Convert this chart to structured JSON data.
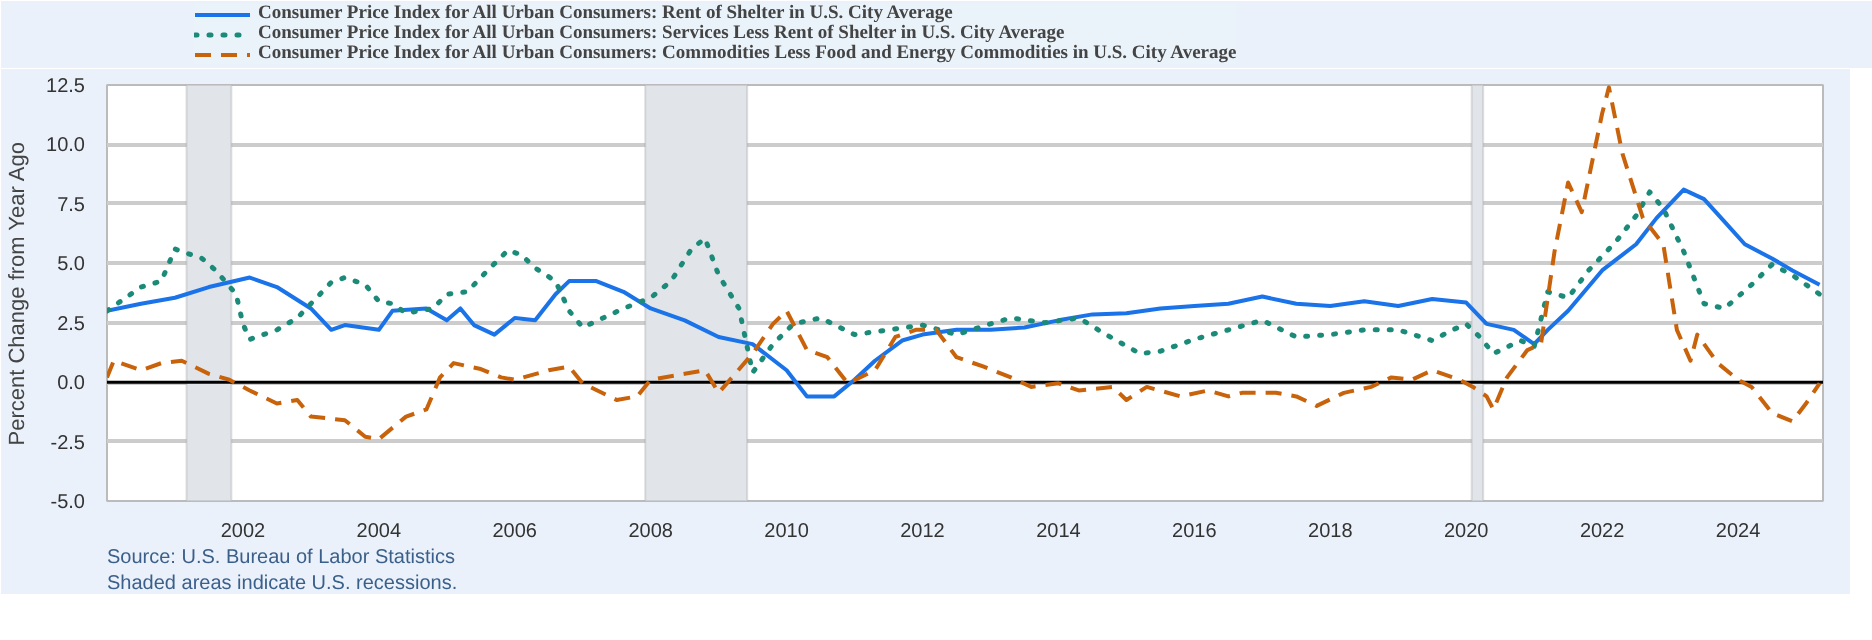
{
  "chart_data": {
    "type": "line",
    "ylabel": "Percent Change from Year Ago",
    "xlim": [
      2000.0,
      2025.25
    ],
    "xticks": [
      2002,
      2004,
      2006,
      2008,
      2010,
      2012,
      2014,
      2016,
      2018,
      2020,
      2022,
      2024
    ],
    "ylim": [
      -5,
      12.5
    ],
    "yticks": [
      {
        "value": -5,
        "label": "-5.0"
      },
      {
        "value": -2.5,
        "label": "-2.5"
      },
      {
        "value": 0,
        "label": "0.0"
      },
      {
        "value": 2.5,
        "label": "2.5"
      },
      {
        "value": 5,
        "label": "5.0"
      },
      {
        "value": 7.5,
        "label": "7.5"
      },
      {
        "value": 10,
        "label": "10.0"
      },
      {
        "value": 12.5,
        "label": "12.5"
      }
    ],
    "grid": "y",
    "legend": "top",
    "series": [
      {
        "name": "Consumer Price Index for All Urban Consumers: Rent of Shelter in U.S. City Average",
        "color": "#1a73e8",
        "line_style": "solid",
        "x": [
          2000.0,
          2000.5,
          2001.0,
          2001.5,
          2002.1,
          2002.5,
          2003.0,
          2003.3,
          2003.5,
          2004.0,
          2004.2,
          2004.7,
          2005.0,
          2005.2,
          2005.4,
          2005.7,
          2006.0,
          2006.3,
          2006.6,
          2006.8,
          2007.2,
          2007.6,
          2008.0,
          2008.5,
          2009.0,
          2009.5,
          2010.0,
          2010.3,
          2010.7,
          2011.0,
          2011.3,
          2011.7,
          2012.0,
          2012.5,
          2013.0,
          2013.5,
          2014.0,
          2014.5,
          2015.0,
          2015.5,
          2016.0,
          2016.5,
          2017.0,
          2017.5,
          2018.0,
          2018.5,
          2019.0,
          2019.5,
          2020.0,
          2020.3,
          2020.7,
          2021.0,
          2021.2,
          2021.5,
          2022.0,
          2022.5,
          2022.8,
          2023.2,
          2023.5,
          2023.8,
          2024.1,
          2024.5,
          2024.8,
          2025.2
        ],
        "values": [
          3.0,
          3.3,
          3.55,
          4.0,
          4.4,
          4.0,
          3.1,
          2.2,
          2.4,
          2.2,
          3.0,
          3.1,
          2.6,
          3.1,
          2.4,
          2.0,
          2.7,
          2.6,
          3.7,
          4.25,
          4.25,
          3.8,
          3.1,
          2.6,
          1.9,
          1.6,
          0.5,
          -0.6,
          -0.6,
          0.1,
          0.9,
          1.75,
          2.0,
          2.2,
          2.2,
          2.3,
          2.6,
          2.85,
          2.9,
          3.1,
          3.2,
          3.3,
          3.6,
          3.3,
          3.2,
          3.4,
          3.2,
          3.5,
          3.35,
          2.45,
          2.2,
          1.6,
          2.2,
          3.0,
          4.7,
          5.8,
          6.9,
          8.1,
          7.7,
          6.75,
          5.8,
          5.2,
          4.7,
          4.1
        ]
      },
      {
        "name": "Consumer Price Index for All Urban Consumers: Services Less Rent of Shelter in U.S. City Average",
        "color": "#1b8a78",
        "line_style": "dotted",
        "x": [
          2000.0,
          2000.5,
          2000.8,
          2001.0,
          2001.4,
          2001.6,
          2001.9,
          2002.0,
          2002.1,
          2002.5,
          2002.8,
          2003.0,
          2003.3,
          2003.5,
          2003.8,
          2004.0,
          2004.2,
          2004.4,
          2004.8,
          2005.0,
          2005.3,
          2005.6,
          2005.9,
          2006.1,
          2006.3,
          2006.6,
          2006.8,
          2007.0,
          2007.3,
          2007.6,
          2008.0,
          2008.3,
          2008.6,
          2008.8,
          2009.0,
          2009.3,
          2009.5,
          2009.8,
          2010.1,
          2010.5,
          2011.0,
          2011.5,
          2012.0,
          2012.5,
          2013.0,
          2013.3,
          2013.8,
          2014.3,
          2014.7,
          2015.2,
          2015.5,
          2016.0,
          2016.5,
          2017.0,
          2017.5,
          2018.0,
          2018.5,
          2019.0,
          2019.5,
          2019.8,
          2020.0,
          2020.2,
          2020.4,
          2020.8,
          2021.0,
          2021.2,
          2021.5,
          2021.8,
          2022.2,
          2022.5,
          2022.7,
          2022.9,
          2023.2,
          2023.5,
          2023.8,
          2024.2,
          2024.5,
          2024.8,
          2025.2
        ],
        "values": [
          3.0,
          4.0,
          4.25,
          5.6,
          5.2,
          4.7,
          3.7,
          2.45,
          1.8,
          2.2,
          2.7,
          3.3,
          4.2,
          4.4,
          4.1,
          3.4,
          3.3,
          2.9,
          3.1,
          3.7,
          3.8,
          4.7,
          5.55,
          5.35,
          4.8,
          4.25,
          3.0,
          2.3,
          2.7,
          3.1,
          3.55,
          4.25,
          5.6,
          6.05,
          4.5,
          3.1,
          0.4,
          1.6,
          2.45,
          2.7,
          2.0,
          2.2,
          2.4,
          2.0,
          2.45,
          2.7,
          2.5,
          2.7,
          2.0,
          1.2,
          1.3,
          1.8,
          2.2,
          2.6,
          1.9,
          2.0,
          2.2,
          2.2,
          1.75,
          2.2,
          2.45,
          1.9,
          1.2,
          1.75,
          1.5,
          3.8,
          3.55,
          4.7,
          5.9,
          7.0,
          8.0,
          7.3,
          5.5,
          3.3,
          3.1,
          4.1,
          4.95,
          4.5,
          3.7
        ]
      },
      {
        "name": "Consumer Price Index for All Urban Consumers: Commodities Less Food and Energy Commodities in U.S. City Average",
        "color": "#c8630b",
        "line_style": "dashed",
        "x": [
          2000.0,
          2000.1,
          2000.5,
          2000.8,
          2001.1,
          2001.5,
          2001.8,
          2002.1,
          2002.5,
          2002.8,
          2003.0,
          2003.5,
          2003.8,
          2004.0,
          2004.4,
          2004.7,
          2004.9,
          2005.1,
          2005.5,
          2005.8,
          2006.0,
          2006.5,
          2006.8,
          2007.0,
          2007.5,
          2007.8,
          2008.0,
          2008.5,
          2008.8,
          2009.0,
          2009.5,
          2009.8,
          2010.0,
          2010.3,
          2010.6,
          2010.9,
          2011.3,
          2011.6,
          2011.9,
          2012.2,
          2012.5,
          2012.9,
          2013.3,
          2013.6,
          2014.0,
          2014.3,
          2014.8,
          2015.0,
          2015.3,
          2015.8,
          2016.2,
          2016.5,
          2016.7,
          2017.2,
          2017.5,
          2017.8,
          2018.2,
          2018.6,
          2018.9,
          2019.2,
          2019.5,
          2019.9,
          2020.1,
          2020.3,
          2020.4,
          2020.6,
          2020.9,
          2021.1,
          2021.3,
          2021.5,
          2021.7,
          2022.0,
          2022.1,
          2022.3,
          2022.6,
          2022.9,
          2023.1,
          2023.3,
          2023.4,
          2023.7,
          2024.0,
          2024.2,
          2024.5,
          2024.8,
          2025.0,
          2025.2
        ],
        "values": [
          0.2,
          0.9,
          0.5,
          0.8,
          0.9,
          0.35,
          0.1,
          -0.35,
          -0.9,
          -0.75,
          -1.45,
          -1.6,
          -2.3,
          -2.4,
          -1.45,
          -1.15,
          0.2,
          0.8,
          0.55,
          0.2,
          0.1,
          0.5,
          0.65,
          -0.05,
          -0.75,
          -0.6,
          0.1,
          0.35,
          0.5,
          -0.45,
          1.2,
          2.45,
          3.0,
          1.35,
          1.05,
          -0.05,
          0.5,
          1.9,
          2.2,
          2.2,
          1.05,
          0.65,
          0.2,
          -0.2,
          -0.05,
          -0.35,
          -0.2,
          -0.75,
          -0.2,
          -0.6,
          -0.35,
          -0.6,
          -0.45,
          -0.45,
          -0.6,
          -1.0,
          -0.45,
          -0.2,
          0.2,
          0.1,
          0.5,
          0.1,
          -0.2,
          -0.6,
          -1.15,
          0.2,
          1.35,
          1.6,
          5.5,
          8.4,
          7.15,
          11.3,
          12.4,
          9.6,
          6.9,
          5.8,
          2.2,
          0.9,
          2.0,
          0.8,
          0.1,
          -0.2,
          -1.3,
          -1.65,
          -0.9,
          -0.05
        ]
      }
    ],
    "ref_lines": [
      {
        "axis": "y",
        "value": 0,
        "color": "#000000",
        "line_style": "solid"
      }
    ],
    "bands": [
      {
        "axis": "x",
        "from": 2001.17,
        "to": 2001.83,
        "color": "#e1e5ea"
      },
      {
        "axis": "x",
        "from": 2007.92,
        "to": 2009.42,
        "color": "#e1e5ea"
      },
      {
        "axis": "x",
        "from": 2020.08,
        "to": 2020.25,
        "color": "#e1e5ea"
      }
    ],
    "annotations": [
      "Source: U.S. Bureau of Labor Statistics",
      "Shaded areas indicate U.S. recessions."
    ]
  }
}
